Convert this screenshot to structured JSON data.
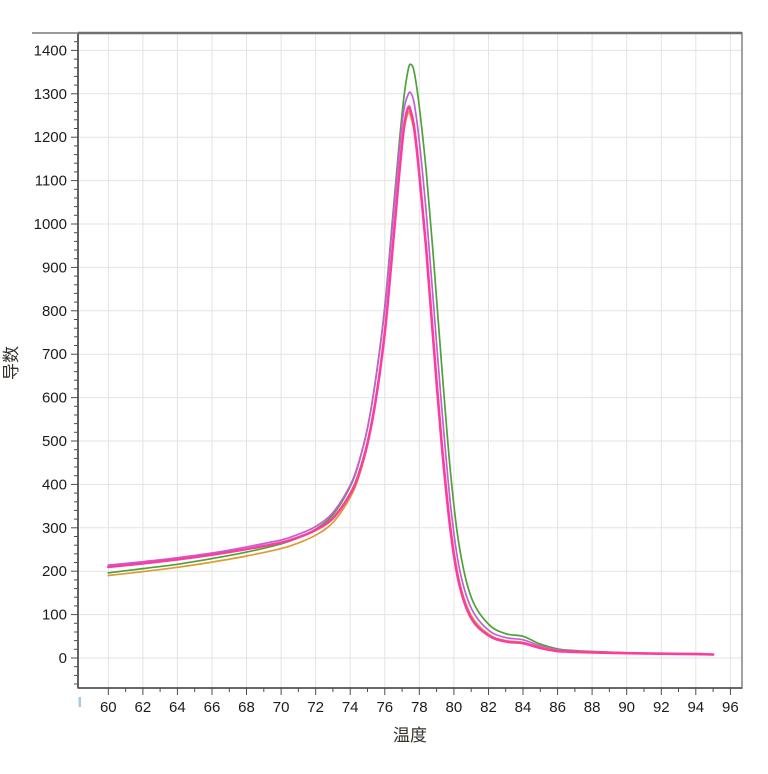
{
  "window": {
    "background": "#ffffff",
    "title": ""
  },
  "chart_data": {
    "type": "line",
    "title": "",
    "xlabel": "温度",
    "ylabel": "导数",
    "xlim": [
      58.3,
      96.7
    ],
    "ylim": [
      -69,
      1440
    ],
    "grid": true,
    "legend": "none",
    "x_ticks": [
      60,
      62,
      64,
      66,
      68,
      70,
      72,
      74,
      76,
      78,
      80,
      82,
      84,
      86,
      88,
      90,
      92,
      94,
      96
    ],
    "x_tick_labels": [
      "60",
      "62",
      "64",
      "66",
      "68",
      "70",
      "72",
      "74",
      "76",
      "78",
      "80",
      "82",
      "84",
      "86",
      "88",
      "90",
      "92",
      "94",
      "96"
    ],
    "y_ticks": [
      0,
      100,
      200,
      300,
      400,
      500,
      600,
      700,
      800,
      900,
      1000,
      1100,
      1200,
      1300,
      1400
    ],
    "y_tick_labels": [
      "0",
      "100",
      "200",
      "300",
      "400",
      "500",
      "600",
      "700",
      "800",
      "900",
      "1000",
      "1100",
      "1200",
      "1300",
      "1400"
    ],
    "x_minor_tick_step": 1,
    "y_minor_tick_step": 20,
    "colors": {
      "grid": "#e3e3e3",
      "frame": "#8a8a8a",
      "frame_top": "#707070",
      "axis": "#4d4d4d",
      "tick_text": "#1c1c1c",
      "origin_marker": "#a9c9e4"
    },
    "x": [
      60,
      62,
      64,
      66,
      68,
      70,
      71,
      72,
      73,
      74,
      74.5,
      75,
      75.5,
      76,
      76.4,
      76.8,
      77.1,
      77.35,
      77.5,
      77.7,
      78,
      78.4,
      78.8,
      79.3,
      79.8,
      80.3,
      81,
      82,
      83,
      84,
      85,
      86,
      87,
      88,
      90,
      92,
      94,
      95
    ],
    "series": [
      {
        "name": "curve-green",
        "color": "#4da238",
        "stroke_width": 1.7,
        "peak": {
          "temp": 77.5,
          "value": 1368
        },
        "start_value": 196,
        "values": [
          196,
          206,
          216,
          229,
          244,
          263,
          277,
          297,
          330,
          395,
          450,
          530,
          650,
          810,
          990,
          1170,
          1290,
          1355,
          1368,
          1350,
          1270,
          1120,
          930,
          670,
          430,
          260,
          140,
          78,
          56,
          50,
          32,
          21,
          17,
          15,
          12,
          10,
          9,
          8
        ]
      },
      {
        "name": "curve-violet",
        "color": "#c45fd3",
        "stroke_width": 1.7,
        "peak": {
          "temp": 77.5,
          "value": 1302
        },
        "start_value": 214,
        "values": [
          214,
          222,
          231,
          242,
          256,
          272,
          285,
          303,
          335,
          398,
          452,
          530,
          648,
          805,
          980,
          1155,
          1262,
          1298,
          1302,
          1278,
          1190,
          1025,
          825,
          575,
          355,
          210,
          115,
          64,
          47,
          42,
          28,
          19,
          16,
          14,
          12,
          10,
          9,
          8
        ]
      },
      {
        "name": "curve-orange",
        "color": "#dd9c33",
        "stroke_width": 1.7,
        "peak": {
          "temp": 77.35,
          "value": 1256
        },
        "start_value": 190,
        "values": [
          190,
          199,
          209,
          221,
          235,
          252,
          265,
          283,
          312,
          370,
          418,
          490,
          597,
          748,
          918,
          1095,
          1212,
          1256,
          1248,
          1212,
          1112,
          942,
          742,
          500,
          306,
          180,
          98,
          55,
          40,
          36,
          25,
          17,
          15,
          13,
          12,
          10,
          9,
          9
        ]
      },
      {
        "name": "curve-pink",
        "color": "#fc3d9e",
        "stroke_width": 2.6,
        "peak": {
          "temp": 77.35,
          "value": 1268
        },
        "start_value": 210,
        "values": [
          210,
          218,
          227,
          238,
          251,
          266,
          278,
          295,
          322,
          378,
          425,
          495,
          600,
          750,
          920,
          1100,
          1220,
          1268,
          1260,
          1222,
          1115,
          940,
          735,
          490,
          296,
          172,
          92,
          52,
          38,
          34,
          23,
          16,
          14,
          13,
          11,
          10,
          9,
          8
        ]
      }
    ]
  }
}
